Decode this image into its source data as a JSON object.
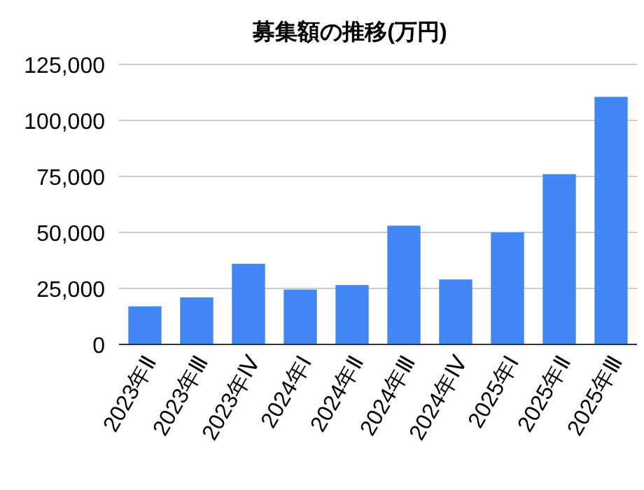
{
  "chart_data": {
    "type": "bar",
    "title": "募集額の推移(万円)",
    "categories": [
      "2023年Ⅱ",
      "2023年Ⅲ",
      "2023年Ⅳ",
      "2024年Ⅰ",
      "2024年Ⅱ",
      "2024年Ⅲ",
      "2024年Ⅳ",
      "2025年Ⅰ",
      "2025年Ⅱ",
      "2025年Ⅲ"
    ],
    "values": [
      17000,
      21000,
      36000,
      24500,
      26500,
      53000,
      29000,
      50000,
      76000,
      110500
    ],
    "color": "#4285f4",
    "ylim": [
      0,
      125000
    ],
    "yticks": [
      {
        "value": 0,
        "label": "0"
      },
      {
        "value": 25000,
        "label": "25,000"
      },
      {
        "value": 50000,
        "label": "50,000"
      },
      {
        "value": 75000,
        "label": "75,000"
      },
      {
        "value": 100000,
        "label": "100,000"
      },
      {
        "value": 125000,
        "label": "125,000"
      }
    ],
    "grid": "y"
  }
}
